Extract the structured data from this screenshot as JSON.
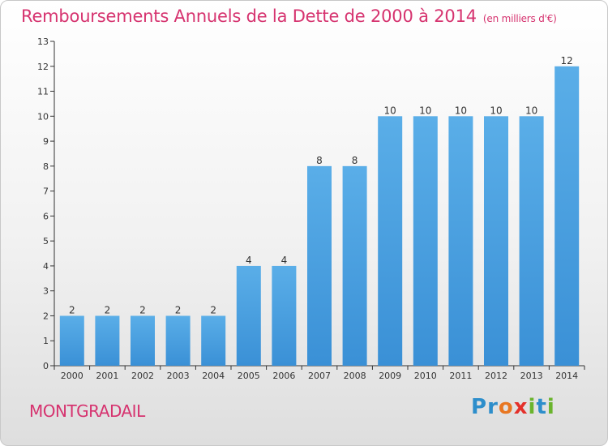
{
  "header": {
    "title": "Remboursements Annuels de la Dette de 2000 à 2014",
    "unit": "(en milliers d'€)"
  },
  "footer": {
    "commune": "MONTGRADAIL",
    "logo_letters": [
      {
        "ch": "P",
        "color": "#2d8ecb"
      },
      {
        "ch": "r",
        "color": "#2d8ecb"
      },
      {
        "ch": "o",
        "color": "#e87722"
      },
      {
        "ch": "x",
        "color": "#e4312b"
      },
      {
        "ch": "i",
        "color": "#6ab42d"
      },
      {
        "ch": "t",
        "color": "#2d8ecb"
      },
      {
        "ch": "i",
        "color": "#6ab42d"
      }
    ]
  },
  "chart_data": {
    "type": "bar",
    "title": "Remboursements Annuels de la Dette de 2000 à 2014",
    "subtitle": "(en milliers d'€)",
    "xlabel": "",
    "ylabel": "",
    "categories": [
      "2000",
      "2001",
      "2002",
      "2003",
      "2004",
      "2005",
      "2006",
      "2007",
      "2008",
      "2009",
      "2010",
      "2011",
      "2012",
      "2013",
      "2014"
    ],
    "values": [
      2,
      2,
      2,
      2,
      2,
      4,
      4,
      8,
      8,
      10,
      10,
      10,
      10,
      10,
      12
    ],
    "ylim": [
      0,
      13
    ],
    "yticks": [
      0,
      1,
      2,
      3,
      4,
      5,
      6,
      7,
      8,
      9,
      10,
      11,
      12,
      13
    ],
    "grid": false,
    "bar_color": "#3a90d6",
    "bar_color_light": "#5aaee8"
  }
}
